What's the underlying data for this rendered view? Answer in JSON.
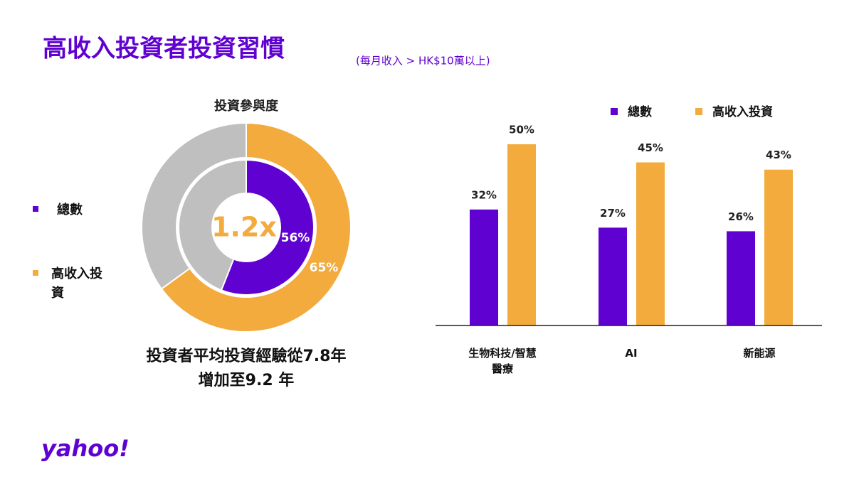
{
  "title": "高收入投資者投資習慣",
  "subtitle": "(每月收入 > HK$10萬以上)",
  "chart_data": [
    {
      "type": "donut",
      "title": "投資參與度",
      "center_label": "1.2x",
      "remainder_color": "#bfbfbf",
      "legend": "left",
      "series": [
        {
          "name": "總數",
          "color": "#5f01d1",
          "values": [
            56
          ],
          "value_labels": [
            "56%"
          ]
        },
        {
          "name": "高收入投資",
          "color": "#f2ab3c",
          "values": [
            65
          ],
          "value_labels": [
            "65%"
          ]
        }
      ]
    },
    {
      "type": "bar",
      "categories": [
        "生物科技/智慧醫療",
        "AI",
        "新能源"
      ],
      "ylim": [
        0,
        55
      ],
      "legend": "top",
      "series": [
        {
          "name": "總數",
          "color": "#5f01d1",
          "values": [
            32,
            27,
            26
          ],
          "value_labels": [
            "32%",
            "27%",
            "26%"
          ]
        },
        {
          "name": "高收入投資",
          "color": "#f2ab3c",
          "values": [
            50,
            45,
            43
          ],
          "value_labels": [
            "50%",
            "45%",
            "43%"
          ]
        }
      ]
    }
  ],
  "caption": [
    "投資者平均投資經驗從7.8年",
    "增加至9.2 年"
  ],
  "logo": "yahoo!"
}
